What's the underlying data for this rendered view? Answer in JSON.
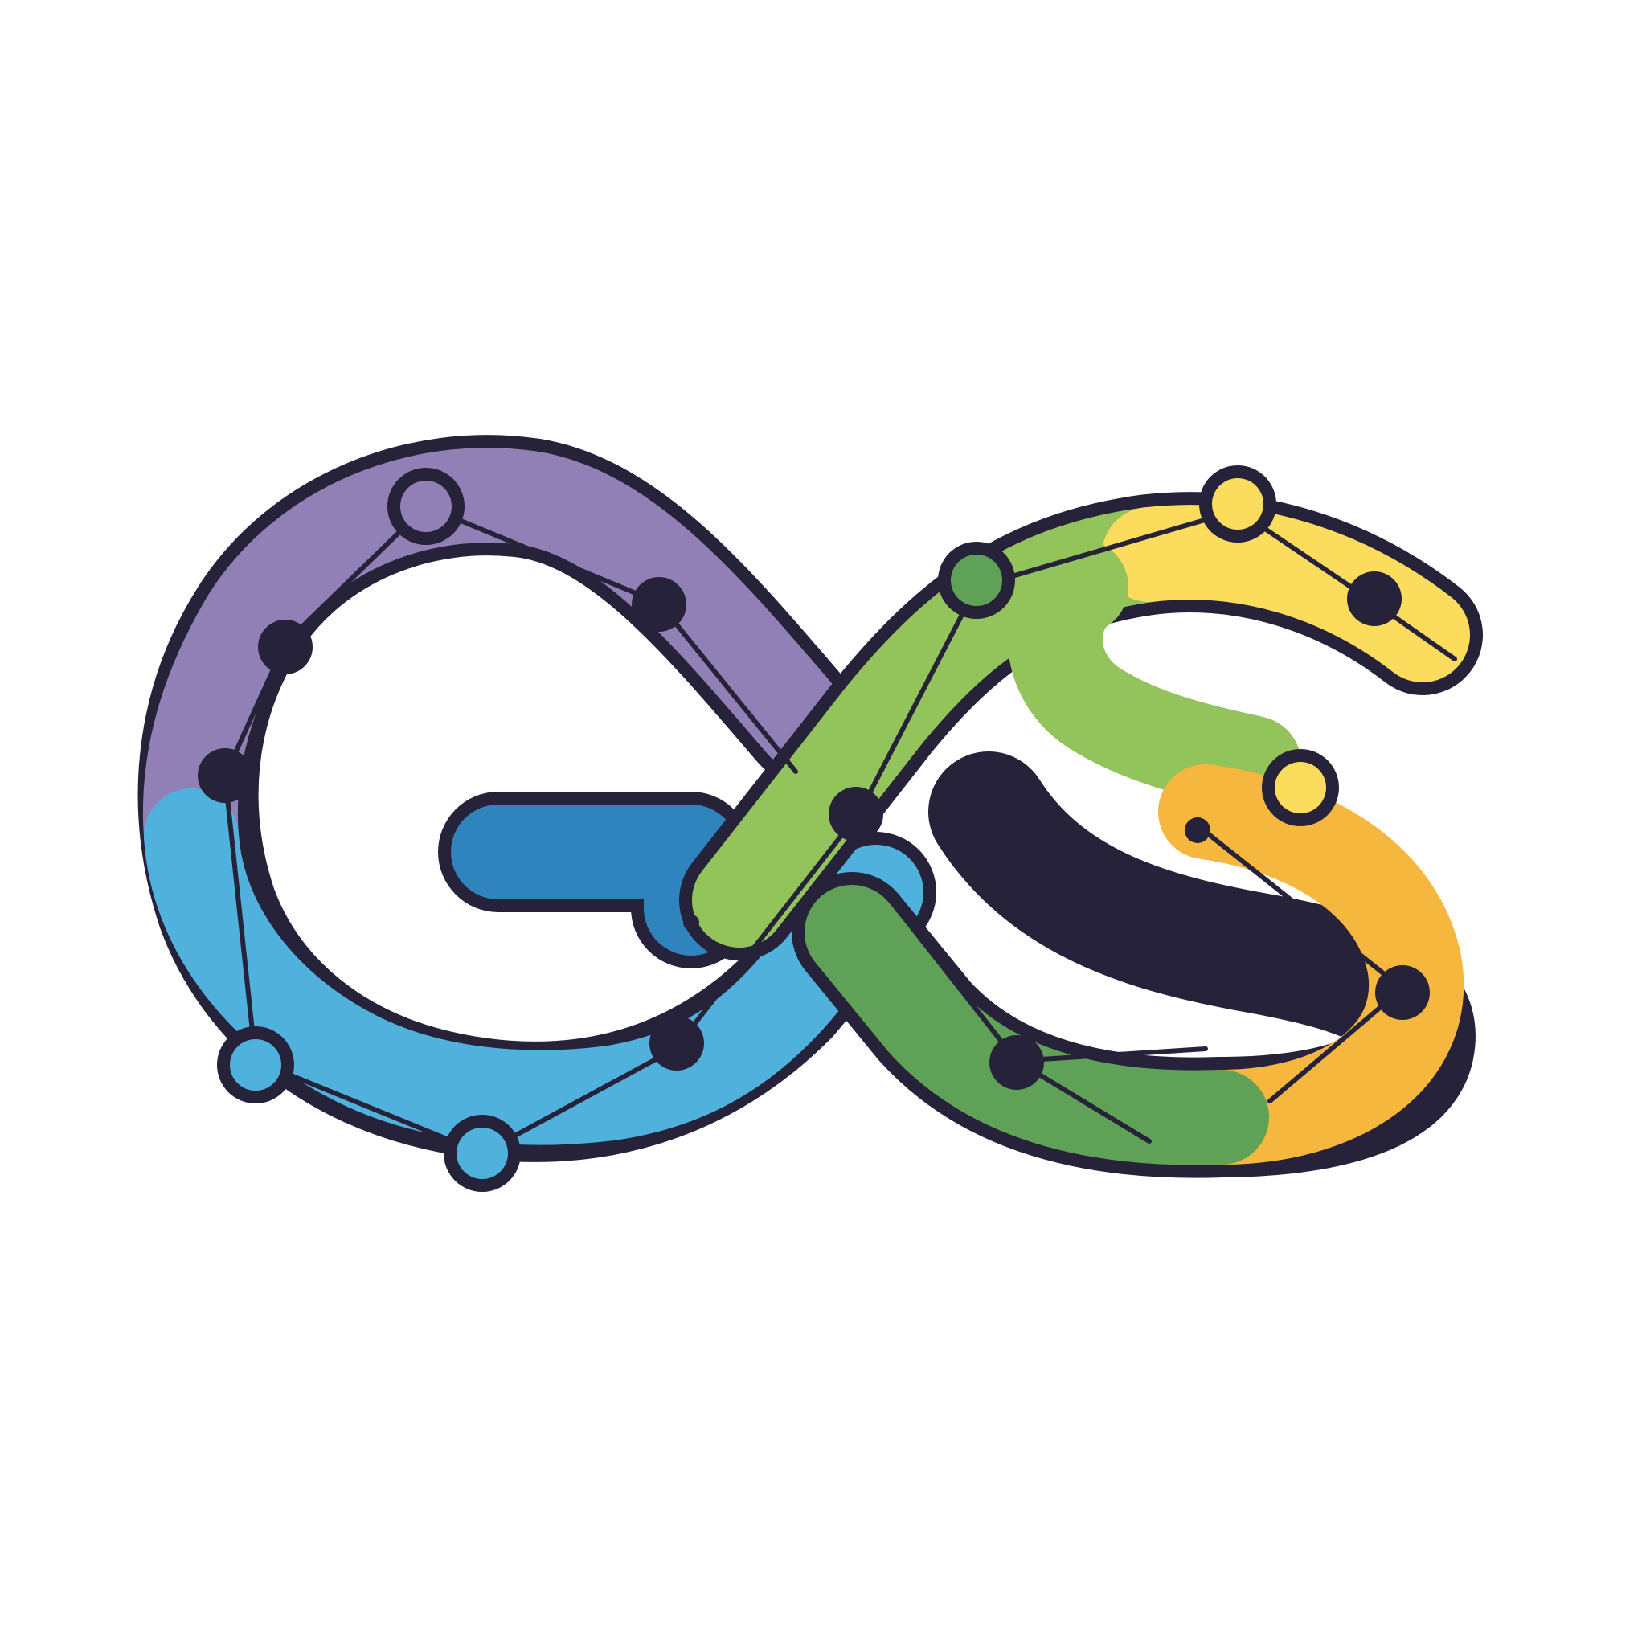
{
  "logo": {
    "description_name": "gs-network-infinity-logo",
    "colors": {
      "background": "#ffffff",
      "outline": "#26223a",
      "purple": "#9180b6",
      "purple_dark": "#6f5f95",
      "blue_light": "#50b1dd",
      "blue_dark": "#2f84bd",
      "green_light": "#92c45b",
      "green_dark": "#5fa257",
      "yellow": "#fbdc5c",
      "orange": "#f5b73d",
      "node_dark": "#26223a"
    }
  }
}
